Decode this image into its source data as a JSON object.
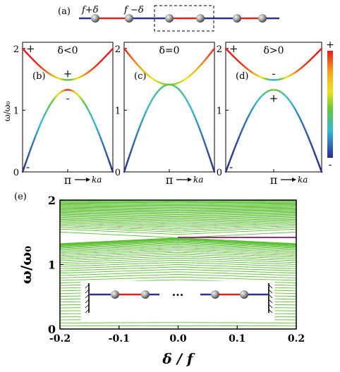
{
  "panel_a": {
    "label": "(a)",
    "left_label": "f+δ",
    "right_label": "f −δ"
  },
  "band_panels": [
    {
      "label": "(b)",
      "delta_label": "δ<0",
      "lower_edge": 1.33,
      "upper_edge": 1.49,
      "signs": {
        "upper_zone": "+",
        "upper_pi": "+",
        "lower_pi": "-",
        "lower_zone": "-"
      }
    },
    {
      "label": "(c)",
      "delta_label": "δ=0",
      "lower_edge": 1.414,
      "upper_edge": 1.414,
      "signs": {}
    },
    {
      "label": "(d)",
      "delta_label": "δ>0",
      "lower_edge": 1.33,
      "upper_edge": 1.49,
      "signs": {
        "upper_zone": "+",
        "upper_pi": "-",
        "lower_pi": "+",
        "lower_zone": "-"
      }
    }
  ],
  "band_axes": {
    "ylabel": "ω/ω₀",
    "yticks": [
      "0",
      "1",
      "2"
    ],
    "xtick": "π",
    "xlabel": "ka",
    "ylim": [
      0,
      2.1
    ]
  },
  "colorbar": {
    "top": "+",
    "bottom": "-"
  },
  "panel_e": {
    "label": "(e)",
    "ylabel": "ω/ω₀",
    "xlabel": "δ / f",
    "xticks": [
      "-0.2",
      "-0.1",
      "0.0",
      "0.1",
      "0.2"
    ],
    "yticks": [
      "0",
      "1",
      "2"
    ],
    "xlim": [
      -0.2,
      0.2
    ],
    "ylim": [
      0,
      2
    ],
    "inset_dots": "···",
    "edge_state": 1.414,
    "band_color": "#5cbf33",
    "edge_color": "#a02a8a"
  },
  "colors": {
    "link_red": "#e2231a",
    "link_blue": "#2c2f94",
    "ball": "#9a9a9a"
  }
}
